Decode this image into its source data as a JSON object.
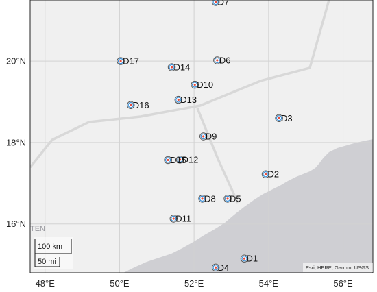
{
  "map": {
    "lon_range": [
      47.6,
      56.8
    ],
    "lat_range": [
      14.8,
      21.5
    ],
    "x_ticks": [
      {
        "value": 48,
        "label": "48°E"
      },
      {
        "value": 50,
        "label": "50°E"
      },
      {
        "value": 52,
        "label": "52°E"
      },
      {
        "value": 54,
        "label": "54°E"
      },
      {
        "value": 56,
        "label": "56°E"
      }
    ],
    "y_ticks": [
      {
        "value": 16,
        "label": "16°N"
      },
      {
        "value": 18,
        "label": "18°N"
      },
      {
        "value": 20,
        "label": "20°N"
      }
    ],
    "colors": {
      "land": "#f0f0f0",
      "sea": "#cfcfd3",
      "grid": "#d2d2d2",
      "border": "#d8d8d8",
      "marker_fill": "#e74c3c",
      "marker_ring": "#3d8fd6",
      "marker_outline": "#555555"
    },
    "markers": [
      {
        "label": "D1",
        "lon": 53.35,
        "lat": 15.15
      },
      {
        "label": "D2",
        "lon": 53.92,
        "lat": 17.22
      },
      {
        "label": "D3",
        "lon": 54.28,
        "lat": 18.6
      },
      {
        "label": "D4",
        "lon": 52.58,
        "lat": 14.93
      },
      {
        "label": "D5",
        "lon": 52.9,
        "lat": 16.62
      },
      {
        "label": "D6",
        "lon": 52.62,
        "lat": 20.02
      },
      {
        "label": "D7",
        "lon": 52.58,
        "lat": 21.45
      },
      {
        "label": "D8",
        "lon": 52.22,
        "lat": 16.62
      },
      {
        "label": "D9",
        "lon": 52.25,
        "lat": 18.15
      },
      {
        "label": "D10",
        "lon": 52.02,
        "lat": 19.42
      },
      {
        "label": "D11",
        "lon": 51.45,
        "lat": 16.13
      },
      {
        "label": "D12",
        "lon": 51.62,
        "lat": 17.58
      },
      {
        "label": "D13",
        "lon": 51.58,
        "lat": 19.05
      },
      {
        "label": "D14",
        "lon": 51.4,
        "lat": 19.85
      },
      {
        "label": "D15",
        "lon": 51.3,
        "lat": 17.57
      },
      {
        "label": "D16",
        "lon": 50.3,
        "lat": 18.92
      },
      {
        "label": "D17",
        "lon": 50.03,
        "lat": 20.0
      }
    ],
    "scale_bar": {
      "km_label": "100 km",
      "mi_label": "50 mi"
    },
    "attribution": "Esri, HERE, Garmin, USGS",
    "edge_label": "TEN"
  }
}
